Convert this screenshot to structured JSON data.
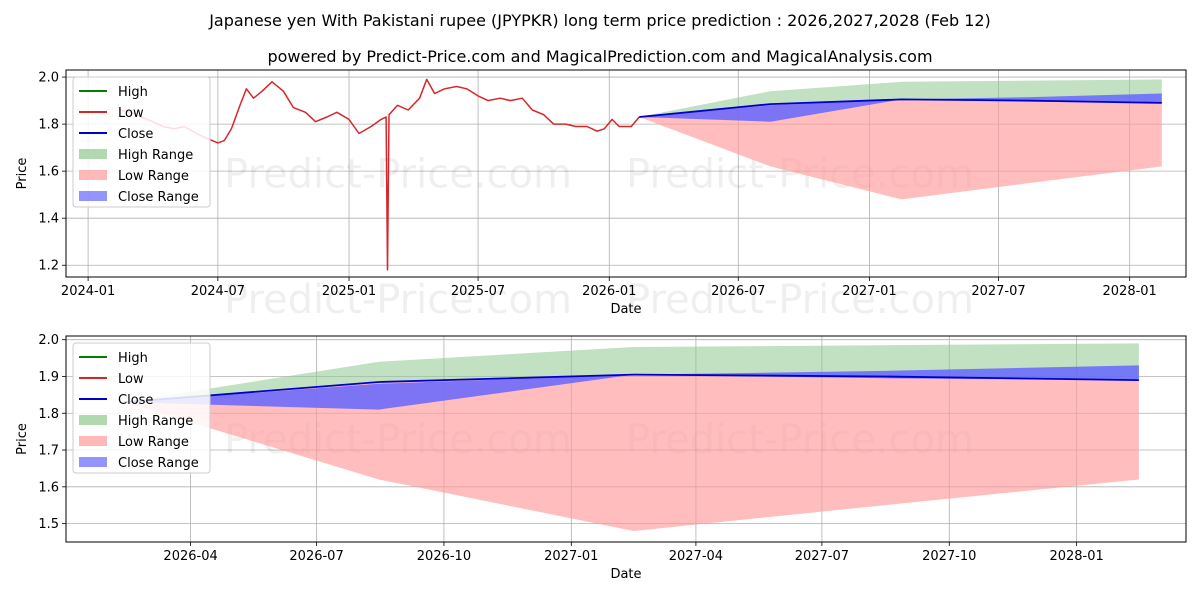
{
  "title": "Japanese yen With Pakistani rupee (JPYPKR) long term price prediction : 2026,2027,2028 (Feb 12)",
  "subtitle": "powered by Predict-Price.com and MagicalPrediction.com and MagicalAnalysis.com",
  "watermark": "Predict-Price.com",
  "colors": {
    "high": "#008000",
    "low": "#d62728",
    "close": "#0000cc",
    "high_range": "#8fc98f",
    "low_range": "#ff9999",
    "close_range": "#6666ff",
    "grid": "#b0b0b0"
  },
  "legend": [
    "High",
    "Low",
    "Close",
    "High Range",
    "Low Range",
    "Close Range"
  ],
  "chart_data": [
    {
      "type": "line",
      "panel": "top",
      "xlabel": "Date",
      "ylabel": "Price",
      "xlim": [
        "2023-12-01",
        "2028-03-20"
      ],
      "ylim": [
        1.15,
        2.03
      ],
      "x_ticks": [
        "2024-01",
        "2024-07",
        "2025-01",
        "2025-07",
        "2026-01",
        "2026-07",
        "2027-01",
        "2027-07",
        "2028-01"
      ],
      "y_ticks": [
        "1.2",
        "1.4",
        "1.6",
        "1.8",
        "2.0"
      ],
      "history": {
        "name": "Low",
        "points": [
          [
            "2024-02-15",
            1.86
          ],
          [
            "2024-03-01",
            1.85
          ],
          [
            "2024-03-15",
            1.83
          ],
          [
            "2024-04-01",
            1.81
          ],
          [
            "2024-04-15",
            1.79
          ],
          [
            "2024-05-01",
            1.78
          ],
          [
            "2024-05-15",
            1.79
          ],
          [
            "2024-06-01",
            1.76
          ],
          [
            "2024-06-15",
            1.74
          ],
          [
            "2024-07-01",
            1.72
          ],
          [
            "2024-07-10",
            1.73
          ],
          [
            "2024-07-20",
            1.78
          ],
          [
            "2024-08-01",
            1.88
          ],
          [
            "2024-08-10",
            1.95
          ],
          [
            "2024-08-20",
            1.91
          ],
          [
            "2024-09-01",
            1.94
          ],
          [
            "2024-09-15",
            1.98
          ],
          [
            "2024-10-01",
            1.94
          ],
          [
            "2024-10-15",
            1.87
          ],
          [
            "2024-11-01",
            1.85
          ],
          [
            "2024-11-15",
            1.81
          ],
          [
            "2024-12-01",
            1.83
          ],
          [
            "2024-12-15",
            1.85
          ],
          [
            "2025-01-01",
            1.82
          ],
          [
            "2025-01-15",
            1.76
          ],
          [
            "2025-02-01",
            1.79
          ],
          [
            "2025-02-15",
            1.82
          ],
          [
            "2025-02-22",
            1.83
          ],
          [
            "2025-02-24",
            1.18
          ],
          [
            "2025-02-26",
            1.84
          ],
          [
            "2025-03-10",
            1.88
          ],
          [
            "2025-03-25",
            1.86
          ],
          [
            "2025-04-10",
            1.91
          ],
          [
            "2025-04-20",
            1.99
          ],
          [
            "2025-05-01",
            1.93
          ],
          [
            "2025-05-15",
            1.95
          ],
          [
            "2025-06-01",
            1.96
          ],
          [
            "2025-06-15",
            1.95
          ],
          [
            "2025-07-01",
            1.92
          ],
          [
            "2025-07-15",
            1.9
          ],
          [
            "2025-08-01",
            1.91
          ],
          [
            "2025-08-15",
            1.9
          ],
          [
            "2025-09-01",
            1.91
          ],
          [
            "2025-09-15",
            1.86
          ],
          [
            "2025-10-01",
            1.84
          ],
          [
            "2025-10-15",
            1.8
          ],
          [
            "2025-11-01",
            1.8
          ],
          [
            "2025-11-15",
            1.79
          ],
          [
            "2025-12-01",
            1.79
          ],
          [
            "2025-12-15",
            1.77
          ],
          [
            "2025-12-25",
            1.78
          ],
          [
            "2026-01-05",
            1.82
          ],
          [
            "2026-01-15",
            1.79
          ],
          [
            "2026-02-01",
            1.79
          ],
          [
            "2026-02-12",
            1.83
          ]
        ]
      },
      "forecast": {
        "dates": [
          "2026-02-12",
          "2026-08-15",
          "2027-02-15",
          "2027-08-15",
          "2028-02-15"
        ],
        "high_range_top": [
          1.83,
          1.94,
          1.98,
          1.985,
          1.99
        ],
        "low_range_bottom": [
          1.83,
          1.62,
          1.48,
          1.55,
          1.62
        ],
        "close_range_top": [
          1.83,
          1.88,
          1.905,
          1.915,
          1.93
        ],
        "close_range_bottom": [
          1.83,
          1.81,
          1.905,
          1.895,
          1.89
        ],
        "high": [
          1.83,
          1.885,
          1.905,
          1.9,
          1.89
        ],
        "low": [
          1.83,
          1.885,
          1.905,
          1.9,
          1.89
        ],
        "close": [
          1.83,
          1.885,
          1.905,
          1.9,
          1.89
        ]
      }
    },
    {
      "type": "line",
      "panel": "bottom",
      "xlabel": "Date",
      "ylabel": "Price",
      "xlim": [
        "2026-01-01",
        "2028-03-20"
      ],
      "ylim": [
        1.45,
        2.01
      ],
      "x_ticks": [
        "2026-04",
        "2026-07",
        "2026-10",
        "2027-01",
        "2027-04",
        "2027-07",
        "2027-10",
        "2028-01"
      ],
      "y_ticks": [
        "1.5",
        "1.6",
        "1.7",
        "1.8",
        "1.9",
        "2.0"
      ],
      "forecast": {
        "dates": [
          "2026-02-12",
          "2026-08-15",
          "2027-02-15",
          "2027-08-15",
          "2028-02-15"
        ],
        "high_range_top": [
          1.83,
          1.94,
          1.98,
          1.985,
          1.99
        ],
        "low_range_bottom": [
          1.83,
          1.62,
          1.48,
          1.55,
          1.62
        ],
        "close_range_top": [
          1.83,
          1.88,
          1.905,
          1.915,
          1.93
        ],
        "close_range_bottom": [
          1.83,
          1.81,
          1.905,
          1.895,
          1.89
        ],
        "high": [
          1.83,
          1.885,
          1.905,
          1.9,
          1.89
        ],
        "low": [
          1.83,
          1.885,
          1.905,
          1.9,
          1.89
        ],
        "close": [
          1.83,
          1.885,
          1.905,
          1.9,
          1.89
        ]
      }
    }
  ]
}
